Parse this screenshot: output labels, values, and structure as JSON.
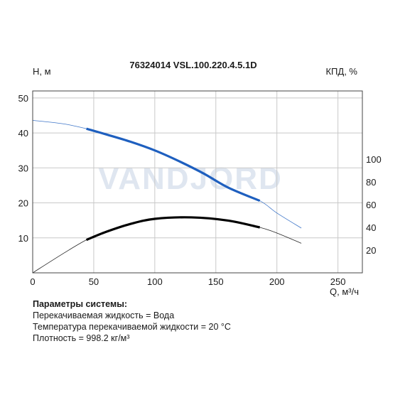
{
  "chart_data": {
    "type": "line",
    "title": "76324014 VSL.100.220.4.5.1D",
    "watermark": "VANDJORD",
    "xlabel": "Q, м³/ч",
    "ylabel_left": "H, м",
    "ylabel_right": "КПД, %",
    "xlim": [
      0,
      270
    ],
    "ylim": [
      0,
      52
    ],
    "ylim_right": [
      0,
      160
    ],
    "xticks": [
      0,
      50,
      100,
      150,
      200,
      250
    ],
    "yticks": [
      10,
      20,
      30,
      40,
      50
    ],
    "yticks_right": [
      20,
      40,
      60,
      80,
      100
    ],
    "grid": true,
    "series": [
      {
        "axis": "left",
        "color": "#1e5fbf",
        "x": [
          0,
          25,
          44,
          60,
          80,
          100,
          120,
          140,
          160,
          186,
          200,
          220
        ],
        "y": [
          43.6,
          42.6,
          41.2,
          39.6,
          37.5,
          35.0,
          31.9,
          28.4,
          24.4,
          20.6,
          17.1,
          12.8
        ],
        "operating_range": [
          44,
          186
        ]
      },
      {
        "axis": "right",
        "color": "#000000",
        "x": [
          0,
          25,
          44,
          60,
          80,
          100,
          130,
          160,
          186,
          200,
          220
        ],
        "y": [
          0,
          17,
          29,
          36,
          43,
          47.5,
          48.8,
          46,
          40,
          35,
          26
        ],
        "operating_range": [
          44,
          186
        ]
      }
    ]
  },
  "params": {
    "title": "Параметры системы:",
    "lines": [
      "Перекачиваемая жидкость = Вода",
      "Температура перекачиваемой жидкости = 20 °C",
      "Плотность = 998.2 кг/м³"
    ]
  },
  "colors": {
    "grid": "#c8c8c8",
    "frame": "#444444",
    "watermark": "#dfe6f0"
  }
}
